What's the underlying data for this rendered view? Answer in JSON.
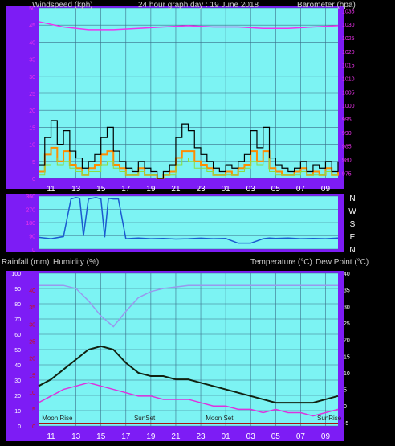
{
  "header": {
    "left_label": "Windspeed (kph)",
    "center_label": "24 hour graph day : 19 June 2018",
    "right_label": "Barometer (hpa)"
  },
  "lower_header": {
    "rainfall_label": "Rainfall (mm)",
    "humidity_label": "Humidity (%)",
    "temperature_label": "Temperature (°C)",
    "dewpoint_label": "Dew Point (°C)"
  },
  "colors": {
    "frame": "#7d1cf5",
    "plot_bg": "#7cf3f3",
    "pressure": "#ee33ee",
    "wind_black": "#000000",
    "wind_orange": "#ff8c00",
    "wind_green": "#88dd44",
    "direction_line": "#1a5ad0",
    "humidity": "#9999ee",
    "temperature": "#112211",
    "dewpoint": "#dd33dd",
    "rain": "#aa1111"
  },
  "chart_data": [
    {
      "type": "line",
      "name": "wind-barometer",
      "x_ticks": [
        "11",
        "13",
        "15",
        "17",
        "19",
        "21",
        "23",
        "01",
        "03",
        "05",
        "07",
        "09"
      ],
      "y_left_ticks": [
        "0",
        "5",
        "10",
        "15",
        "20",
        "25",
        "30",
        "35",
        "40",
        "45",
        "50"
      ],
      "y_right_ticks": [
        "975",
        "980",
        "985",
        "990",
        "995",
        "1000",
        "1005",
        "1010",
        "1015",
        "1020",
        "1025",
        "1030",
        "1035"
      ],
      "ylim_left": [
        0,
        50
      ],
      "ylim_right": [
        973,
        1036
      ],
      "pressure_hours": [
        0,
        2,
        4,
        6,
        8,
        10,
        12,
        14,
        16,
        18,
        20,
        22,
        24
      ],
      "pressure_values": [
        1031,
        1029,
        1028,
        1028,
        1028.5,
        1029,
        1029.5,
        1029,
        1029,
        1028.5,
        1028.5,
        1029,
        1029.5
      ],
      "wind_black_hours": [
        0,
        0.5,
        1,
        1.5,
        2,
        2.5,
        3,
        3.5,
        4,
        4.5,
        5,
        5.5,
        6,
        6.5,
        7,
        7.5,
        8,
        8.5,
        9,
        9.5,
        10,
        10.5,
        11,
        11.5,
        12,
        12.5,
        13,
        13.5,
        14,
        14.5,
        15,
        15.5,
        16,
        16.5,
        17,
        17.5,
        18,
        18.5,
        19,
        19.5,
        20,
        20.5,
        21,
        21.5,
        22,
        22.5,
        23,
        23.5,
        24
      ],
      "wind_black_values": [
        4,
        12,
        17,
        10,
        14,
        8,
        6,
        3,
        5,
        7,
        12,
        15,
        8,
        5,
        3,
        2,
        5,
        3,
        2,
        0,
        2,
        4,
        12,
        16,
        14,
        9,
        7,
        5,
        3,
        2,
        4,
        3,
        5,
        7,
        14,
        9,
        15,
        6,
        4,
        3,
        2,
        3,
        5,
        2,
        4,
        3,
        5,
        2,
        5
      ],
      "wind_orange_values": [
        2,
        7,
        9,
        5,
        8,
        4,
        3,
        1,
        3,
        4,
        7,
        8,
        4,
        3,
        1,
        1,
        3,
        1,
        1,
        0,
        1,
        2,
        6,
        8,
        8,
        5,
        4,
        3,
        1,
        1,
        2,
        1,
        3,
        4,
        8,
        5,
        8,
        3,
        2,
        1,
        1,
        2,
        3,
        1,
        2,
        1,
        3,
        1,
        2
      ],
      "wind_green_values": [
        1,
        4,
        6,
        4,
        5,
        3,
        2,
        1,
        2,
        2,
        4,
        5,
        3,
        2,
        1,
        1,
        2,
        1,
        1,
        0,
        1,
        1,
        4,
        6,
        5,
        3,
        3,
        2,
        1,
        1,
        1,
        1,
        2,
        3,
        5,
        4,
        6,
        2,
        1,
        1,
        1,
        1,
        2,
        1,
        1,
        1,
        2,
        1,
        1
      ]
    },
    {
      "type": "line",
      "name": "wind-direction",
      "right_labels": [
        "N",
        "W",
        "S",
        "E",
        "N"
      ],
      "y_left_ticks": [
        "0",
        "90",
        "180",
        "270",
        "360"
      ],
      "ylim": [
        0,
        360
      ],
      "hours": [
        0,
        1,
        2,
        2.6,
        3.0,
        3.3,
        3.6,
        4.0,
        4.3,
        4.6,
        5.0,
        5.3,
        5.6,
        6.0,
        6.4,
        7,
        8,
        9,
        10,
        11,
        12,
        13,
        14,
        15,
        16,
        17,
        18,
        18.5,
        19,
        20,
        21,
        22,
        23,
        24
      ],
      "values": [
        80,
        70,
        85,
        340,
        350,
        345,
        90,
        340,
        345,
        350,
        340,
        80,
        345,
        340,
        340,
        70,
        75,
        70,
        72,
        68,
        70,
        74,
        70,
        72,
        40,
        40,
        70,
        75,
        72,
        75,
        70,
        72,
        70,
        75
      ]
    },
    {
      "type": "line",
      "name": "temperature-humidity",
      "x_ticks": [
        "11",
        "13",
        "15",
        "17",
        "19",
        "21",
        "23",
        "01",
        "03",
        "05",
        "07",
        "09"
      ],
      "y_left_ticks": [
        "0",
        "10",
        "20",
        "30",
        "40",
        "50",
        "60",
        "70",
        "80",
        "90",
        "100"
      ],
      "y_rain_ticks": [
        "0",
        "5",
        "10",
        "15",
        "20",
        "25",
        "30",
        "35",
        "40"
      ],
      "y_right_ticks": [
        "-5",
        "0",
        "5",
        "10",
        "15",
        "20",
        "25",
        "30",
        "35",
        "40"
      ],
      "ylim_left": [
        0,
        100
      ],
      "ylim_right": [
        -6,
        40
      ],
      "annotations": [
        {
          "label": "Moon Rise",
          "hour": 1.5
        },
        {
          "label": "SunSet",
          "hour": 8.5
        },
        {
          "label": "Moon Set",
          "hour": 14.5
        },
        {
          "label": "SunRise",
          "hour": 23.3
        }
      ],
      "hours": [
        0,
        1,
        2,
        3,
        4,
        5,
        6,
        7,
        8,
        9,
        10,
        11,
        12,
        13,
        14,
        15,
        16,
        17,
        18,
        19,
        20,
        21,
        22,
        23,
        24
      ],
      "humidity_values": [
        92,
        92,
        92,
        90,
        82,
        72,
        65,
        75,
        84,
        88,
        90,
        91,
        92,
        92,
        92,
        92,
        92,
        92,
        92,
        92,
        92,
        92,
        92,
        92,
        92
      ],
      "temperature_values": [
        6,
        8,
        11,
        14,
        17,
        18,
        17,
        13,
        10,
        9,
        9,
        8,
        8,
        7,
        6,
        5,
        4,
        3,
        2,
        1,
        1,
        1,
        1,
        2,
        3
      ],
      "dewpoint_values": [
        1,
        3,
        5,
        6,
        7,
        6,
        5,
        4,
        3,
        3,
        2,
        2,
        2,
        1,
        0,
        0,
        -1,
        -1,
        -2,
        -1,
        -2,
        -2,
        -3,
        -2,
        -1
      ],
      "rain_values": [
        0,
        0,
        0,
        0,
        0,
        0,
        0,
        0,
        0,
        0,
        0,
        0,
        0,
        0,
        0,
        0,
        0,
        0,
        0,
        0,
        0,
        0,
        0,
        0,
        0
      ]
    }
  ]
}
